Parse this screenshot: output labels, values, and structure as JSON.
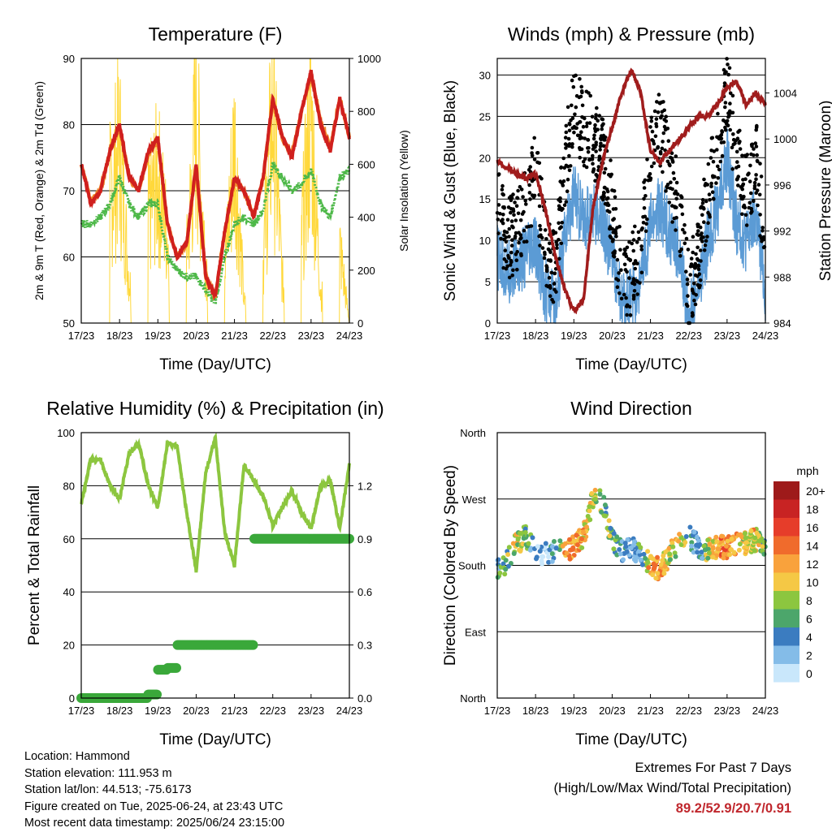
{
  "time_ticks": [
    "17/23",
    "18/23",
    "19/23",
    "20/23",
    "21/23",
    "22/23",
    "23/23",
    "24/23"
  ],
  "colors": {
    "temp_2m": "#d0201e",
    "temp_9m": "#f0882a",
    "dewpoint": "#4db848",
    "solar": "#ffd83a",
    "wind": "#5b9bd5",
    "gust": "#000000",
    "pressure": "#a01c1c",
    "rh": "#8cc63f",
    "precip": "#3aa83a",
    "extremes_text": "#c0272d"
  },
  "chart_data": [
    {
      "type": "line",
      "title": "Temperature (F)",
      "xlabel": "Time (Day/UTC)",
      "ylabel_left": "2m & 9m T (Red, Orange) & 2m Td (Green)",
      "ylabel_right": "Solar Insolation (Yellow)",
      "ylim_left": [
        50,
        90
      ],
      "yticks_left": [
        50,
        60,
        70,
        80,
        90
      ],
      "ylim_right": [
        0,
        1000
      ],
      "yticks_right": [
        0,
        200,
        400,
        600,
        800,
        1000
      ],
      "x_days": [
        0,
        0.25,
        0.5,
        0.75,
        1,
        1.25,
        1.5,
        1.75,
        2,
        2.25,
        2.5,
        2.75,
        3,
        3.25,
        3.5,
        3.75,
        4,
        4.25,
        4.5,
        4.75,
        5,
        5.25,
        5.5,
        5.75,
        6,
        6.25,
        6.5,
        6.75,
        7
      ],
      "series": [
        {
          "role": "2m T",
          "color": "#d0201e",
          "values": [
            74,
            68,
            70,
            76,
            80,
            72,
            70,
            76,
            78,
            65,
            60,
            62,
            74,
            57,
            54,
            64,
            72,
            70,
            66,
            72,
            84,
            78,
            75,
            82,
            88,
            80,
            76,
            84,
            78
          ]
        },
        {
          "role": "9m T",
          "color": "#f0882a",
          "values": [
            74,
            68.5,
            70,
            76,
            79.5,
            72,
            70,
            75.5,
            77.5,
            65,
            60,
            62,
            73.5,
            57,
            54,
            64,
            71.5,
            70,
            66,
            72,
            83.5,
            78,
            75.5,
            82,
            87.5,
            80.5,
            76.5,
            84,
            78
          ]
        },
        {
          "role": "2m Td",
          "color": "#4db848",
          "values": [
            65,
            65,
            66,
            68,
            72,
            68,
            66,
            68,
            68,
            60,
            58,
            57,
            57,
            55,
            53,
            60,
            65,
            66,
            65,
            67,
            74,
            72,
            70,
            71,
            73,
            68,
            66,
            72,
            73
          ]
        },
        {
          "role": "Solar",
          "axis": "right",
          "color": "#ffd83a",
          "values": [
            0,
            0,
            0,
            600,
            820,
            200,
            0,
            500,
            680,
            400,
            0,
            300,
            950,
            300,
            0,
            250,
            850,
            100,
            0,
            300,
            1000,
            200,
            0,
            400,
            940,
            150,
            0,
            350,
            0
          ]
        }
      ]
    },
    {
      "type": "line",
      "title": "Winds (mph) & Pressure (mb)",
      "xlabel": "Time (Day/UTC)",
      "ylabel_left": "Sonic Wind & Gust (Blue, Black)",
      "ylabel_right": "Station Pressure (Maroon)",
      "ylim_left": [
        0,
        32
      ],
      "yticks_left": [
        0,
        5,
        10,
        15,
        20,
        25,
        30
      ],
      "ylim_right": [
        984,
        1007
      ],
      "yticks_right": [
        984,
        988,
        992,
        996,
        1000,
        1004
      ],
      "x_days": [
        0,
        0.25,
        0.5,
        0.75,
        1,
        1.25,
        1.5,
        1.75,
        2,
        2.25,
        2.5,
        2.75,
        3,
        3.25,
        3.5,
        3.75,
        4,
        4.25,
        4.5,
        4.75,
        5,
        5.25,
        5.5,
        5.75,
        6,
        6.25,
        6.5,
        6.75,
        7
      ],
      "series": [
        {
          "role": "Wind",
          "color": "#5b9bd5",
          "values": [
            8,
            6,
            7,
            8,
            9,
            4,
            2,
            10,
            16,
            12,
            14,
            12,
            8,
            2,
            3,
            5,
            12,
            14,
            11,
            8,
            1,
            4,
            10,
            14,
            20,
            12,
            10,
            13,
            4
          ]
        },
        {
          "role": "Gust",
          "color": "#000000",
          "values": [
            14,
            10,
            11,
            14,
            18,
            10,
            6,
            18,
            26,
            24,
            22,
            20,
            14,
            5,
            6,
            9,
            22,
            24,
            18,
            14,
            4,
            8,
            16,
            22,
            28,
            20,
            16,
            20,
            8
          ]
        },
        {
          "role": "Pressure",
          "axis": "right",
          "color": "#a01c1c",
          "values": [
            998,
            997.5,
            997,
            996.5,
            997,
            994,
            990,
            987,
            985,
            986,
            994,
            998,
            1001,
            1004,
            1006,
            1004,
            999,
            998,
            999,
            1000,
            1001,
            1002,
            1002,
            1003,
            1004.5,
            1005,
            1003,
            1004,
            1003
          ]
        }
      ]
    },
    {
      "type": "line",
      "title": "Relative Humidity (%) & Precipitation (in)",
      "xlabel": "Time (Day/UTC)",
      "ylabel_left": "Percent & Total Rainfall",
      "ylim_left": [
        0,
        100
      ],
      "yticks_left": [
        0,
        20,
        40,
        60,
        80,
        100
      ],
      "ylim_right": [
        0,
        1.5
      ],
      "yticks_right": [
        0.0,
        0.3,
        0.6,
        0.9,
        1.2
      ],
      "x_days": [
        0,
        0.25,
        0.5,
        0.75,
        1,
        1.25,
        1.5,
        1.75,
        2,
        2.25,
        2.5,
        2.75,
        3,
        3.25,
        3.5,
        3.75,
        4,
        4.25,
        4.5,
        4.75,
        5,
        5.25,
        5.5,
        5.75,
        6,
        6.25,
        6.5,
        6.75,
        7
      ],
      "series": [
        {
          "role": "RH",
          "color": "#8cc63f",
          "values": [
            73,
            90,
            90,
            80,
            75,
            92,
            96,
            80,
            72,
            96,
            95,
            70,
            48,
            85,
            98,
            62,
            50,
            88,
            82,
            76,
            65,
            72,
            78,
            70,
            64,
            80,
            82,
            64,
            88
          ]
        },
        {
          "role": "Precip",
          "axis": "right",
          "color": "#3aa83a",
          "values": [
            0,
            0,
            0,
            0,
            0,
            0,
            0,
            0.02,
            0.16,
            0.17,
            0.3,
            0.3,
            0.3,
            0.3,
            0.3,
            0.3,
            0.3,
            0.3,
            0.9,
            0.9,
            0.9,
            0.9,
            0.9,
            0.9,
            0.9,
            0.9,
            0.9,
            0.9,
            0.9
          ]
        }
      ]
    },
    {
      "type": "scatter",
      "title": "Wind Direction",
      "xlabel": "Time (Day/UTC)",
      "ylabel": "Direction (Colored By Speed)",
      "yticks": [
        "North",
        "East",
        "South",
        "West",
        "North"
      ],
      "ylim": [
        0,
        360
      ],
      "colorbar": {
        "title": "mph",
        "labels": [
          "20+",
          "18",
          "16",
          "14",
          "12",
          "10",
          "8",
          "6",
          "4",
          "2",
          "0"
        ],
        "colors": [
          "#9e1a1a",
          "#c82323",
          "#e63d2a",
          "#f06b2c",
          "#f9a23c",
          "#f5c845",
          "#8cc63f",
          "#4ca66b",
          "#3b7cc0",
          "#84bce8",
          "#c9e7fb"
        ]
      },
      "x_days": [
        0,
        0.25,
        0.5,
        0.75,
        1,
        1.25,
        1.5,
        1.75,
        2,
        2.25,
        2.5,
        2.75,
        3,
        3.25,
        3.5,
        3.75,
        4,
        4.25,
        4.5,
        4.75,
        5,
        5.25,
        5.5,
        5.75,
        6,
        6.25,
        6.5,
        6.75,
        7
      ],
      "direction": [
        175,
        185,
        210,
        220,
        200,
        195,
        200,
        200,
        205,
        220,
        270,
        265,
        215,
        200,
        205,
        195,
        180,
        175,
        195,
        210,
        220,
        205,
        200,
        205,
        205,
        210,
        210,
        215,
        200
      ],
      "speed": [
        6,
        8,
        10,
        8,
        4,
        3,
        4,
        12,
        14,
        12,
        10,
        8,
        8,
        4,
        4,
        6,
        14,
        12,
        10,
        10,
        6,
        4,
        10,
        14,
        14,
        12,
        10,
        12,
        6
      ]
    }
  ],
  "footer": {
    "location": "Location: Hammond",
    "elevation": "Station elevation: 111.953 m",
    "latlon": "Station lat/lon: 44.513; -75.6173",
    "created": "Figure created on Tue, 2025-06-24, at 23:43 UTC",
    "recent": "Most recent data timestamp: 2025/06/24 23:15:00"
  },
  "extremes": {
    "title": "Extremes For Past 7 Days",
    "subtitle": "(High/Low/Max Wind/Total Precipitation)",
    "values": "89.2/52.9/20.7/0.91"
  }
}
